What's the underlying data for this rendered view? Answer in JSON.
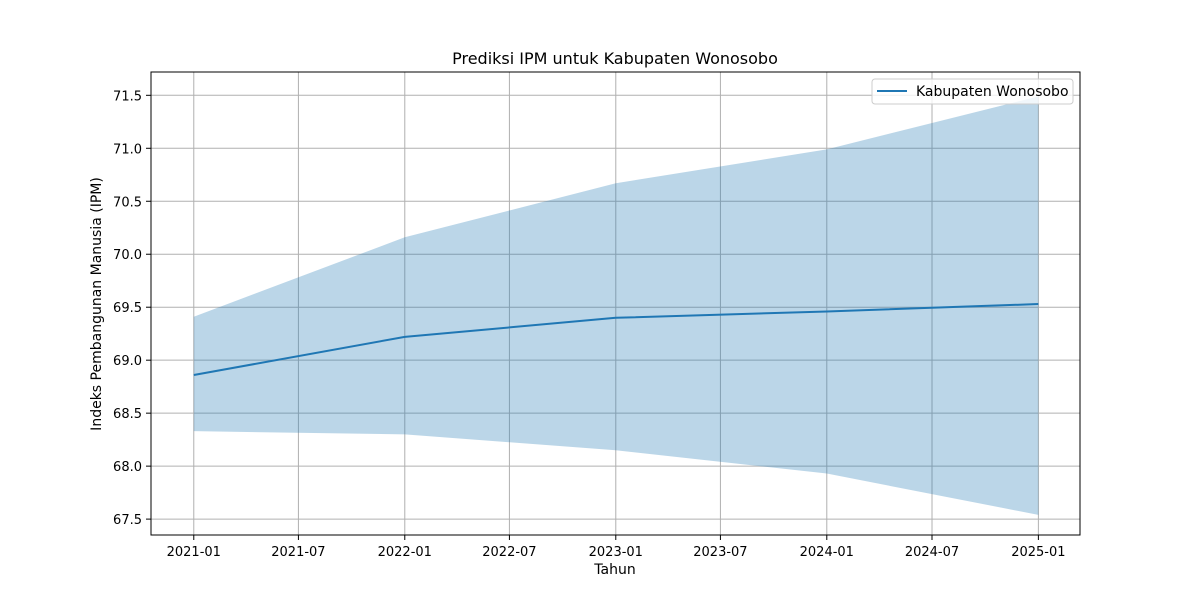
{
  "chart_data": {
    "type": "line",
    "title": "Prediksi IPM untuk Kabupaten Wonosobo",
    "xlabel": "Tahun",
    "ylabel": "Indeks Pembangunan Manusia (IPM)",
    "x": [
      "2021-01-01",
      "2022-01-01",
      "2023-01-01",
      "2024-01-01",
      "2025-01-01"
    ],
    "series": [
      {
        "name": "Kabupaten Wonosobo",
        "values": [
          68.86,
          69.22,
          69.4,
          69.46,
          69.53
        ],
        "lower": [
          68.33,
          68.3,
          68.15,
          67.93,
          67.54
        ],
        "upper": [
          69.41,
          70.16,
          70.67,
          70.99,
          71.49
        ],
        "color": "#1f77b4",
        "band_color": "#1f77b4"
      }
    ],
    "xlim": [
      "2020-10-19",
      "2025-03-14"
    ],
    "ylim": [
      67.35,
      71.72
    ],
    "x_ticks": [
      {
        "date": "2021-01-01",
        "label": "2021-01"
      },
      {
        "date": "2021-07-01",
        "label": "2021-07"
      },
      {
        "date": "2022-01-01",
        "label": "2022-01"
      },
      {
        "date": "2022-07-01",
        "label": "2022-07"
      },
      {
        "date": "2023-01-01",
        "label": "2023-01"
      },
      {
        "date": "2023-07-01",
        "label": "2023-07"
      },
      {
        "date": "2024-01-01",
        "label": "2024-01"
      },
      {
        "date": "2024-07-01",
        "label": "2024-07"
      },
      {
        "date": "2025-01-01",
        "label": "2025-01"
      }
    ],
    "y_ticks": [
      67.5,
      68.0,
      68.5,
      69.0,
      69.5,
      70.0,
      70.5,
      71.0,
      71.5
    ],
    "y_tick_labels": [
      "67.5",
      "68.0",
      "68.5",
      "69.0",
      "69.5",
      "70.0",
      "70.5",
      "71.0",
      "71.5"
    ],
    "grid": true,
    "legend_position": "top-right"
  }
}
